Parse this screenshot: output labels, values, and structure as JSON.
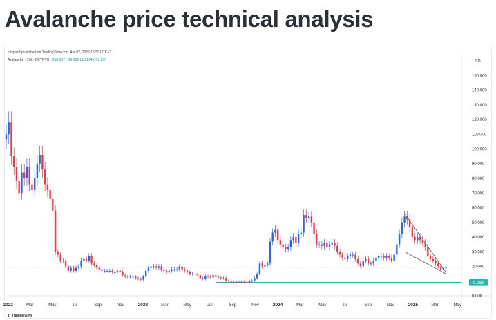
{
  "page": {
    "title": "Avalanche price technical analysis"
  },
  "header": {
    "publish_line": "crispus8 published on TradingView.com, Apr 02, 2025 15:59 UTC+3",
    "symbol": "Avalanche · 1W · CRYPTO",
    "ohlc": "O18.057  H19.939  L16.194  C19.255"
  },
  "footer": {
    "brand": "TradingView",
    "brand_icon": "tradingview-logo-icon"
  },
  "colors": {
    "up": "#2962ff",
    "down": "#f23645",
    "support": "#2ab7a9",
    "wedge": "#555555",
    "level": "#c9c9f2"
  },
  "chart_data": {
    "type": "candlestick",
    "title": "",
    "xlabel": "",
    "ylabel": "",
    "currency_label": "USD",
    "ylim": [
      0,
      160
    ],
    "yticks": [
      0,
      10,
      20,
      30,
      40,
      50,
      60,
      70,
      80,
      90,
      100,
      110,
      120,
      130,
      140,
      150
    ],
    "ytick_labels": [
      "0.000",
      "10.000",
      "20.000",
      "30.000",
      "40.000",
      "50.000",
      "60.000",
      "70.000",
      "80.000",
      "90.000",
      "100.000",
      "110.000",
      "120.000",
      "130.000",
      "140.000",
      "150.000"
    ],
    "xticks": [
      {
        "date": "2022-01-01",
        "label": "2022"
      },
      {
        "date": "2022-03-01",
        "label": "Mar"
      },
      {
        "date": "2022-05-01",
        "label": "May"
      },
      {
        "date": "2022-07-01",
        "label": "Jul"
      },
      {
        "date": "2022-09-01",
        "label": "Sep"
      },
      {
        "date": "2022-11-01",
        "label": "Nov"
      },
      {
        "date": "2023-01-01",
        "label": "2023"
      },
      {
        "date": "2023-03-01",
        "label": "Mar"
      },
      {
        "date": "2023-05-01",
        "label": "May"
      },
      {
        "date": "2023-07-01",
        "label": "Jul"
      },
      {
        "date": "2023-09-01",
        "label": "Sep"
      },
      {
        "date": "2023-11-01",
        "label": "Nov"
      },
      {
        "date": "2024-01-01",
        "label": "2024"
      },
      {
        "date": "2024-03-01",
        "label": "Mar"
      },
      {
        "date": "2024-05-01",
        "label": "May"
      },
      {
        "date": "2024-07-01",
        "label": "Jul"
      },
      {
        "date": "2024-09-01",
        "label": "Sep"
      },
      {
        "date": "2024-11-01",
        "label": "Nov"
      },
      {
        "date": "2025-01-01",
        "label": "2025"
      },
      {
        "date": "2025-03-01",
        "label": "Mar"
      },
      {
        "date": "2025-05-01",
        "label": "May"
      }
    ],
    "x_range": [
      "2021-12-27",
      "2025-05-12"
    ],
    "series": [
      {
        "weekly_close": [
          [
            "2021-12-27",
            110
          ],
          [
            "2022-01-03",
            118
          ],
          [
            "2022-01-10",
            95
          ],
          [
            "2022-01-17",
            88
          ],
          [
            "2022-01-24",
            78
          ],
          [
            "2022-01-31",
            70
          ],
          [
            "2022-02-07",
            84
          ],
          [
            "2022-02-14",
            80
          ],
          [
            "2022-02-21",
            88
          ],
          [
            "2022-02-28",
            76
          ],
          [
            "2022-03-07",
            72
          ],
          [
            "2022-03-14",
            80
          ],
          [
            "2022-03-21",
            90
          ],
          [
            "2022-03-28",
            96
          ],
          [
            "2022-04-04",
            86
          ],
          [
            "2022-04-11",
            76
          ],
          [
            "2022-04-18",
            72
          ],
          [
            "2022-04-25",
            66
          ],
          [
            "2022-05-02",
            58
          ],
          [
            "2022-05-09",
            30
          ],
          [
            "2022-05-16",
            28
          ],
          [
            "2022-05-23",
            24
          ],
          [
            "2022-05-30",
            24
          ],
          [
            "2022-06-06",
            20
          ],
          [
            "2022-06-13",
            17
          ],
          [
            "2022-06-20",
            19
          ],
          [
            "2022-06-27",
            17
          ],
          [
            "2022-07-04",
            19
          ],
          [
            "2022-07-11",
            20
          ],
          [
            "2022-07-18",
            24
          ],
          [
            "2022-07-25",
            25
          ],
          [
            "2022-08-01",
            24
          ],
          [
            "2022-08-08",
            27
          ],
          [
            "2022-08-15",
            22
          ],
          [
            "2022-08-22",
            21
          ],
          [
            "2022-08-29",
            19
          ],
          [
            "2022-09-05",
            18
          ],
          [
            "2022-09-12",
            17
          ],
          [
            "2022-09-19",
            17
          ],
          [
            "2022-09-26",
            17
          ],
          [
            "2022-10-03",
            17
          ],
          [
            "2022-10-10",
            16
          ],
          [
            "2022-10-17",
            16
          ],
          [
            "2022-10-24",
            17
          ],
          [
            "2022-10-31",
            16
          ],
          [
            "2022-11-07",
            14
          ],
          [
            "2022-11-14",
            13
          ],
          [
            "2022-11-21",
            13
          ],
          [
            "2022-11-28",
            13
          ],
          [
            "2022-12-05",
            13
          ],
          [
            "2022-12-12",
            12
          ],
          [
            "2022-12-19",
            11.5
          ],
          [
            "2022-12-26",
            11
          ],
          [
            "2023-01-02",
            13
          ],
          [
            "2023-01-09",
            17
          ],
          [
            "2023-01-16",
            19
          ],
          [
            "2023-01-23",
            20
          ],
          [
            "2023-01-30",
            20
          ],
          [
            "2023-02-06",
            19
          ],
          [
            "2023-02-13",
            20
          ],
          [
            "2023-02-20",
            18
          ],
          [
            "2023-02-27",
            17
          ],
          [
            "2023-03-06",
            16
          ],
          [
            "2023-03-13",
            17
          ],
          [
            "2023-03-20",
            18
          ],
          [
            "2023-03-27",
            18
          ],
          [
            "2023-04-03",
            18
          ],
          [
            "2023-04-10",
            20
          ],
          [
            "2023-04-17",
            18
          ],
          [
            "2023-04-24",
            17
          ],
          [
            "2023-05-01",
            16
          ],
          [
            "2023-05-08",
            15
          ],
          [
            "2023-05-15",
            15
          ],
          [
            "2023-05-22",
            14.5
          ],
          [
            "2023-05-29",
            14
          ],
          [
            "2023-06-05",
            12
          ],
          [
            "2023-06-12",
            11.5
          ],
          [
            "2023-06-19",
            13.5
          ],
          [
            "2023-06-26",
            13
          ],
          [
            "2023-07-03",
            12.5
          ],
          [
            "2023-07-10",
            14
          ],
          [
            "2023-07-17",
            13
          ],
          [
            "2023-07-24",
            12.5
          ],
          [
            "2023-07-31",
            12
          ],
          [
            "2023-08-07",
            12
          ],
          [
            "2023-08-14",
            10.5
          ],
          [
            "2023-08-21",
            10
          ],
          [
            "2023-08-28",
            9.5
          ],
          [
            "2023-09-04",
            9.2
          ],
          [
            "2023-09-11",
            9.5
          ],
          [
            "2023-09-18",
            9.4
          ],
          [
            "2023-09-25",
            9.6
          ],
          [
            "2023-10-02",
            9.4
          ],
          [
            "2023-10-09",
            9.2
          ],
          [
            "2023-10-16",
            10
          ],
          [
            "2023-10-23",
            10.5
          ],
          [
            "2023-10-30",
            12
          ],
          [
            "2023-11-06",
            15
          ],
          [
            "2023-11-13",
            22
          ],
          [
            "2023-11-20",
            20
          ],
          [
            "2023-11-27",
            21
          ],
          [
            "2023-12-04",
            22
          ],
          [
            "2023-12-11",
            37
          ],
          [
            "2023-12-18",
            43
          ],
          [
            "2023-12-25",
            45
          ],
          [
            "2024-01-01",
            38
          ],
          [
            "2024-01-08",
            35
          ],
          [
            "2024-01-15",
            33
          ],
          [
            "2024-01-22",
            32
          ],
          [
            "2024-01-29",
            33
          ],
          [
            "2024-02-05",
            38
          ],
          [
            "2024-02-12",
            40
          ],
          [
            "2024-02-19",
            36
          ],
          [
            "2024-02-26",
            42
          ],
          [
            "2024-03-04",
            43
          ],
          [
            "2024-03-11",
            55
          ],
          [
            "2024-03-18",
            53
          ],
          [
            "2024-03-25",
            54
          ],
          [
            "2024-04-01",
            50
          ],
          [
            "2024-04-08",
            42
          ],
          [
            "2024-04-15",
            35
          ],
          [
            "2024-04-22",
            35
          ],
          [
            "2024-04-29",
            34
          ],
          [
            "2024-05-06",
            36
          ],
          [
            "2024-05-13",
            33
          ],
          [
            "2024-05-20",
            35
          ],
          [
            "2024-05-27",
            36
          ],
          [
            "2024-06-03",
            34
          ],
          [
            "2024-06-10",
            30
          ],
          [
            "2024-06-17",
            28
          ],
          [
            "2024-06-24",
            26
          ],
          [
            "2024-07-01",
            25
          ],
          [
            "2024-07-08",
            27
          ],
          [
            "2024-07-15",
            28
          ],
          [
            "2024-07-22",
            28
          ],
          [
            "2024-07-29",
            25
          ],
          [
            "2024-08-05",
            22
          ],
          [
            "2024-08-12",
            20
          ],
          [
            "2024-08-19",
            24
          ],
          [
            "2024-08-26",
            25
          ],
          [
            "2024-09-02",
            22
          ],
          [
            "2024-09-09",
            22
          ],
          [
            "2024-09-16",
            24
          ],
          [
            "2024-09-23",
            26
          ],
          [
            "2024-09-30",
            27
          ],
          [
            "2024-10-07",
            27
          ],
          [
            "2024-10-14",
            26
          ],
          [
            "2024-10-21",
            27
          ],
          [
            "2024-10-28",
            26
          ],
          [
            "2024-11-04",
            24
          ],
          [
            "2024-11-11",
            28
          ],
          [
            "2024-11-18",
            35
          ],
          [
            "2024-11-25",
            42
          ],
          [
            "2024-12-02",
            50
          ],
          [
            "2024-12-09",
            54
          ],
          [
            "2024-12-16",
            52
          ],
          [
            "2024-12-23",
            47
          ],
          [
            "2024-12-30",
            40
          ],
          [
            "2025-01-06",
            38
          ],
          [
            "2025-01-13",
            40
          ],
          [
            "2025-01-20",
            38
          ],
          [
            "2025-01-27",
            36
          ],
          [
            "2025-02-03",
            33
          ],
          [
            "2025-02-10",
            27
          ],
          [
            "2025-02-17",
            25
          ],
          [
            "2025-02-24",
            24
          ],
          [
            "2025-03-03",
            22
          ],
          [
            "2025-03-10",
            20
          ],
          [
            "2025-03-17",
            18
          ],
          [
            "2025-03-24",
            19
          ],
          [
            "2025-03-31",
            19.255
          ]
        ]
      }
    ],
    "annotations": {
      "support_level": 9.098,
      "support_label": "9.098",
      "support_start": "2023-07-17",
      "last_price_line": 19.255,
      "wedge_upper": [
        [
          "2024-12-09",
          56
        ],
        [
          "2025-03-31",
          16
        ]
      ],
      "wedge_lower": [
        [
          "2024-12-09",
          30
        ],
        [
          "2025-03-31",
          15
        ]
      ]
    },
    "grid": false,
    "legend": "none"
  }
}
